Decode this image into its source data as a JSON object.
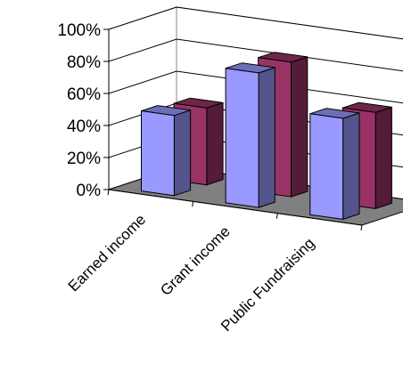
{
  "chart_data": {
    "type": "bar",
    "style": "3d-clustered-column",
    "categories": [
      "Earned income",
      "Grant income",
      "Public Fundraising"
    ],
    "series": [
      {
        "values": [
          50,
          84,
          63
        ],
        "color": "#9999ff"
      },
      {
        "values": [
          48,
          84,
          60
        ],
        "color": "#993366"
      }
    ],
    "ylim": [
      0,
      100
    ],
    "yticks": [
      "0%",
      "20%",
      "40%",
      "60%",
      "80%",
      "100%"
    ],
    "grid": true,
    "legend": "none",
    "title": "",
    "xlabel": "",
    "ylabel": ""
  }
}
